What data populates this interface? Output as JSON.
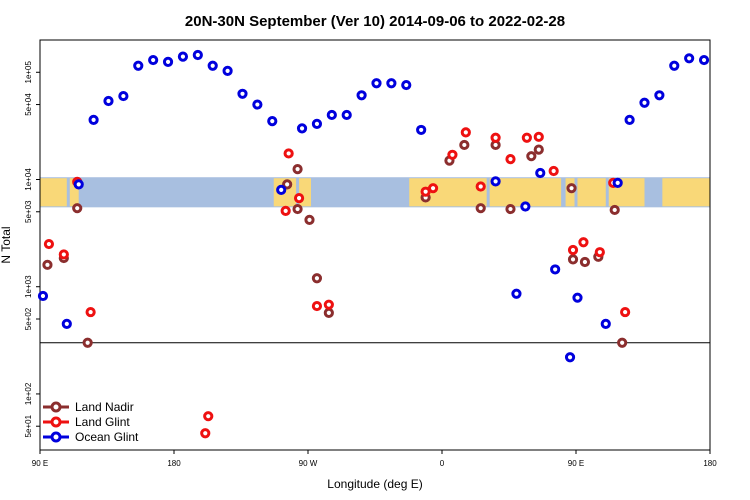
{
  "chart_data": {
    "type": "scatter",
    "title": "20N-30N September (Ver 10)   2014-09-06 to 2022-02-28",
    "xlabel": "Longitude (deg E)",
    "ylabel": "N Total",
    "x_ticks": [
      {
        "value": 0,
        "label": "90 E"
      },
      {
        "value": 90,
        "label": "180"
      },
      {
        "value": 180,
        "label": "90 W"
      },
      {
        "value": 270,
        "label": "0"
      },
      {
        "value": 360,
        "label": "90 E"
      },
      {
        "value": 450,
        "label": "180"
      }
    ],
    "xlim": [
      0,
      450
    ],
    "y_ticks": [
      {
        "value": 50,
        "label": "5e+01"
      },
      {
        "value": 100,
        "label": "1e+02"
      },
      {
        "value": 500,
        "label": "5e+02"
      },
      {
        "value": 1000,
        "label": "1e+03"
      },
      {
        "value": 5000,
        "label": "5e+03"
      },
      {
        "value": 10000,
        "label": "1e+04"
      },
      {
        "value": 50000,
        "label": "5e+04"
      },
      {
        "value": 100000,
        "label": "1e+05"
      }
    ],
    "ylim": [
      30,
      200000
    ],
    "y_scale": "log",
    "reference_line": 300,
    "land_band": {
      "y_low": 5500,
      "y_high": 10500
    },
    "legend_position": "bottom-left",
    "series": [
      {
        "name": "Land Nadir",
        "color": "#8b2e2e",
        "points": [
          [
            5,
            1600
          ],
          [
            16,
            1850
          ],
          [
            25,
            5400
          ],
          [
            32,
            300
          ],
          [
            166,
            9000
          ],
          [
            173,
            5300
          ],
          [
            173,
            12500
          ],
          [
            181,
            4200
          ],
          [
            186,
            1200
          ],
          [
            194,
            570
          ],
          [
            259,
            6800
          ],
          [
            275,
            15000
          ],
          [
            285,
            21000
          ],
          [
            296,
            5400
          ],
          [
            306,
            21000
          ],
          [
            316,
            5300
          ],
          [
            330,
            16500
          ],
          [
            335,
            19000
          ],
          [
            357,
            8300
          ],
          [
            358,
            1800
          ],
          [
            366,
            1700
          ],
          [
            375,
            1900
          ],
          [
            386,
            5200
          ],
          [
            391,
            300
          ]
        ]
      },
      {
        "name": "Land Glint",
        "color": "#ee1111",
        "points": [
          [
            6,
            2500
          ],
          [
            16,
            2000
          ],
          [
            25,
            9500
          ],
          [
            34,
            580
          ],
          [
            113,
            62
          ],
          [
            111,
            43
          ],
          [
            165,
            5100
          ],
          [
            167,
            17500
          ],
          [
            174,
            6700
          ],
          [
            186,
            660
          ],
          [
            194,
            680
          ],
          [
            259,
            7700
          ],
          [
            264,
            8300
          ],
          [
            277,
            17000
          ],
          [
            286,
            27500
          ],
          [
            296,
            8600
          ],
          [
            306,
            24500
          ],
          [
            316,
            15500
          ],
          [
            327,
            24500
          ],
          [
            335,
            25000
          ],
          [
            345,
            12000
          ],
          [
            358,
            2200
          ],
          [
            365,
            2600
          ],
          [
            376,
            2100
          ],
          [
            385,
            9300
          ],
          [
            393,
            580
          ]
        ]
      },
      {
        "name": "Ocean Glint",
        "color": "#0000dd",
        "points": [
          [
            2,
            820
          ],
          [
            18,
            450
          ],
          [
            26,
            9000
          ],
          [
            36,
            36000
          ],
          [
            46,
            54000
          ],
          [
            56,
            60000
          ],
          [
            66,
            115000
          ],
          [
            76,
            130000
          ],
          [
            86,
            125000
          ],
          [
            96,
            140000
          ],
          [
            106,
            145000
          ],
          [
            116,
            115000
          ],
          [
            126,
            103000
          ],
          [
            136,
            63000
          ],
          [
            146,
            50000
          ],
          [
            156,
            35000
          ],
          [
            162,
            8000
          ],
          [
            176,
            30000
          ],
          [
            186,
            33000
          ],
          [
            196,
            40000
          ],
          [
            206,
            40000
          ],
          [
            216,
            61000
          ],
          [
            226,
            79000
          ],
          [
            236,
            79000
          ],
          [
            246,
            76000
          ],
          [
            256,
            29000
          ],
          [
            306,
            9600
          ],
          [
            320,
            860
          ],
          [
            326,
            5600
          ],
          [
            336,
            11500
          ],
          [
            346,
            1450
          ],
          [
            356,
            220
          ],
          [
            361,
            790
          ],
          [
            380,
            450
          ],
          [
            388,
            9300
          ],
          [
            396,
            36000
          ],
          [
            406,
            52000
          ],
          [
            416,
            61000
          ],
          [
            426,
            115000
          ],
          [
            436,
            135000
          ],
          [
            446,
            130000
          ]
        ]
      }
    ]
  }
}
